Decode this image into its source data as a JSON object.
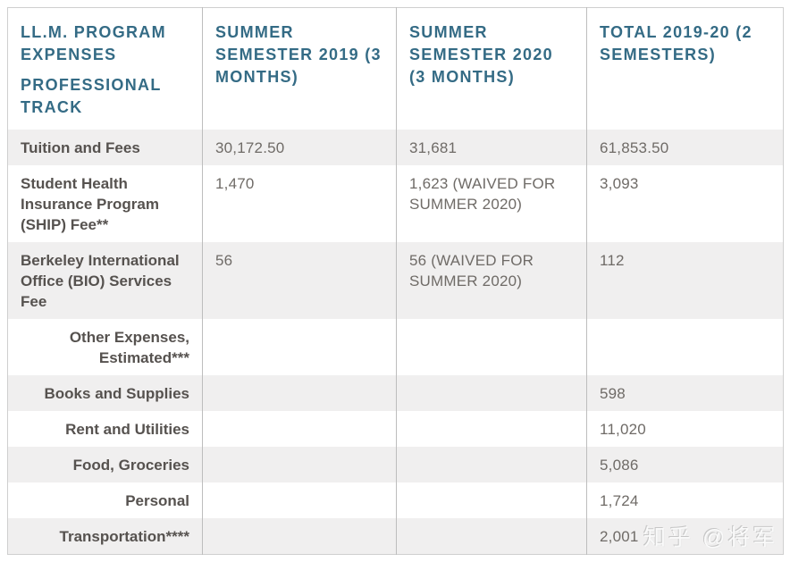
{
  "table": {
    "columns": [
      {
        "lines": [
          "LL.M. PROGRAM EXPENSES",
          "PROFESSIONAL TRACK"
        ]
      },
      {
        "lines": [
          "SUMMER SEMESTER 2019 (3 MONTHS)"
        ]
      },
      {
        "lines": [
          "SUMMER SEMESTER 2020 (3 MONTHS)"
        ]
      },
      {
        "lines": [
          "TOTAL 2019-20 (2 SEMESTERS)"
        ]
      }
    ],
    "rows": [
      {
        "label": "Tuition and Fees",
        "align": "left",
        "values": [
          "30,172.50",
          "31,681",
          "61,853.50"
        ]
      },
      {
        "label": "Student Health Insurance Program (SHIP) Fee**",
        "align": "left",
        "values": [
          "1,470",
          "1,623 (WAIVED FOR SUMMER 2020)",
          "3,093"
        ]
      },
      {
        "label": "Berkeley International Office (BIO) Services Fee",
        "align": "left",
        "values": [
          "56",
          "56 (WAIVED FOR SUMMER 2020)",
          "112"
        ]
      },
      {
        "label": "Other Expenses, Estimated***",
        "align": "right",
        "values": [
          "",
          "",
          ""
        ]
      },
      {
        "label": "Books and Supplies",
        "align": "right",
        "values": [
          "",
          "",
          "598"
        ]
      },
      {
        "label": "Rent and Utilities",
        "align": "right",
        "values": [
          "",
          "",
          "11,020"
        ]
      },
      {
        "label": "Food, Groceries",
        "align": "right",
        "values": [
          "",
          "",
          "5,086"
        ]
      },
      {
        "label": "Personal",
        "align": "right",
        "values": [
          "",
          "",
          "1,724"
        ]
      },
      {
        "label": "Transportation****",
        "align": "right",
        "values": [
          "",
          "",
          "2,001"
        ]
      }
    ]
  },
  "watermark": {
    "text": "知乎 @将军"
  },
  "colors": {
    "header_text": "#346b85",
    "label_text": "#56524f",
    "value_text": "#6f6b67",
    "row_stripe": "#f0efef",
    "grid_line": "#bdbdbd",
    "outer_border": "#cfcfcf",
    "watermark_text": "#fafafa"
  }
}
